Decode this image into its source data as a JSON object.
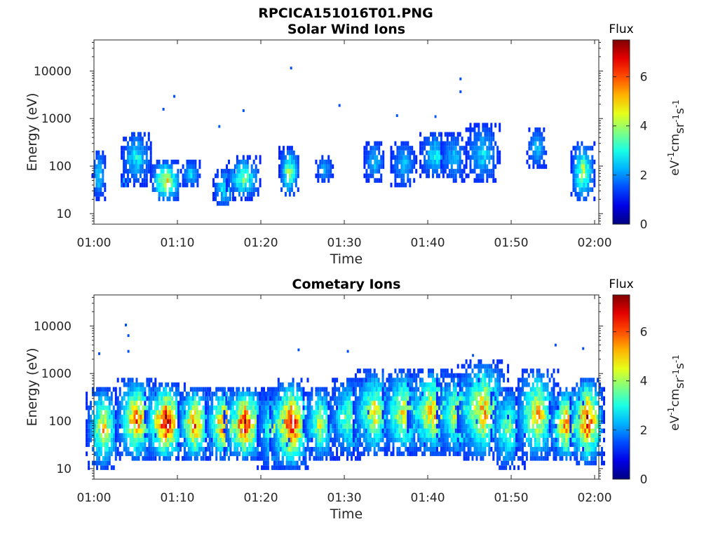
{
  "figure_title": "RPCICA151016T01.PNG",
  "chart_data": [
    {
      "type": "heatmap",
      "title": "Solar Wind Ions",
      "xlabel": "Time",
      "ylabel": "Energy (eV)",
      "x_ticks": [
        "01:00",
        "01:10",
        "01:20",
        "01:30",
        "01:40",
        "01:50",
        "02:00"
      ],
      "x_range_minutes": [
        0,
        60.5
      ],
      "y_scale": "log",
      "y_ticks": [
        "10",
        "100",
        "1000",
        "10000"
      ],
      "y_range": [
        6,
        45000
      ],
      "colorbar": {
        "title": "Flux",
        "label": "eV-1cm-2sr-1s-1",
        "ticks": [
          "0",
          "2",
          "4",
          "6"
        ],
        "range": [
          0,
          7.5
        ],
        "colormap": "jet"
      },
      "bursts": [
        {
          "t": 0.5,
          "w": 0.8,
          "e": [
            18,
            200
          ],
          "peak": 3.0
        },
        {
          "t": 3.5,
          "w": 0.8,
          "e": [
            30,
            60
          ],
          "peak": 2.8
        },
        {
          "t": 5.0,
          "w": 1.8,
          "e": [
            35,
            500
          ],
          "peak": 3.0
        },
        {
          "t": 8.5,
          "w": 1.8,
          "e": [
            15,
            120
          ],
          "peak": 5.0
        },
        {
          "t": 11.5,
          "w": 1.2,
          "e": [
            30,
            120
          ],
          "peak": 2.8
        },
        {
          "t": 15.5,
          "w": 1.3,
          "e": [
            12,
            80
          ],
          "peak": 3.2
        },
        {
          "t": 17.8,
          "w": 2.0,
          "e": [
            18,
            140
          ],
          "peak": 4.0
        },
        {
          "t": 23.3,
          "w": 1.2,
          "e": [
            20,
            220
          ],
          "peak": 4.2
        },
        {
          "t": 27.5,
          "w": 1.0,
          "e": [
            40,
            150
          ],
          "peak": 2.5
        },
        {
          "t": 33.5,
          "w": 1.2,
          "e": [
            40,
            300
          ],
          "peak": 2.6
        },
        {
          "t": 37.0,
          "w": 1.5,
          "e": [
            30,
            300
          ],
          "peak": 2.6
        },
        {
          "t": 40.8,
          "w": 1.8,
          "e": [
            45,
            500
          ],
          "peak": 3.0
        },
        {
          "t": 43.0,
          "w": 1.5,
          "e": [
            40,
            450
          ],
          "peak": 2.6
        },
        {
          "t": 46.5,
          "w": 2.0,
          "e": [
            40,
            700
          ],
          "peak": 2.8
        },
        {
          "t": 53.0,
          "w": 1.2,
          "e": [
            80,
            600
          ],
          "peak": 2.6
        },
        {
          "t": 58.5,
          "w": 1.4,
          "e": [
            15,
            300
          ],
          "peak": 4.4
        }
      ],
      "isolated_points": [
        {
          "t": 9.5,
          "e": 2800,
          "v": 1.5
        },
        {
          "t": 8.2,
          "e": 1500,
          "v": 1.5
        },
        {
          "t": 17.8,
          "e": 1400,
          "v": 1.5
        },
        {
          "t": 23.5,
          "e": 11000,
          "v": 1.5
        },
        {
          "t": 29.3,
          "e": 1800,
          "v": 1.5
        },
        {
          "t": 43.8,
          "e": 6500,
          "v": 1.5
        },
        {
          "t": 43.8,
          "e": 3500,
          "v": 1.5
        },
        {
          "t": 36.2,
          "e": 1100,
          "v": 1.6
        },
        {
          "t": 40.8,
          "e": 1050,
          "v": 1.6
        },
        {
          "t": 14.9,
          "e": 650,
          "v": 1.6
        }
      ]
    },
    {
      "type": "heatmap",
      "title": "Cometary Ions",
      "xlabel": "Time",
      "ylabel": "Energy (eV)",
      "x_ticks": [
        "01:00",
        "01:10",
        "01:20",
        "01:30",
        "01:40",
        "01:50",
        "02:00"
      ],
      "x_range_minutes": [
        0,
        60.5
      ],
      "y_scale": "log",
      "y_ticks": [
        "10",
        "100",
        "1000",
        "10000"
      ],
      "y_range": [
        6,
        45000
      ],
      "colorbar": {
        "title": "Flux",
        "label": "eV-1cm-2sr-1s-1",
        "ticks": [
          "0",
          "2",
          "4",
          "6"
        ],
        "range": [
          0,
          7.5
        ],
        "colormap": "jet"
      },
      "bursts": [
        {
          "t": 1.0,
          "w": 2.0,
          "e": [
            8,
            500
          ],
          "peak": 5.0
        },
        {
          "t": 5.0,
          "w": 2.5,
          "e": [
            12,
            800
          ],
          "peak": 6.0
        },
        {
          "t": 8.5,
          "w": 2.5,
          "e": [
            12,
            600
          ],
          "peak": 7.2
        },
        {
          "t": 12.0,
          "w": 2.0,
          "e": [
            12,
            500
          ],
          "peak": 6.2
        },
        {
          "t": 15.5,
          "w": 2.2,
          "e": [
            12,
            500
          ],
          "peak": 6.2
        },
        {
          "t": 18.0,
          "w": 2.5,
          "e": [
            12,
            500
          ],
          "peak": 6.8
        },
        {
          "t": 21.5,
          "w": 2.0,
          "e": [
            8,
            500
          ],
          "peak": 4.2
        },
        {
          "t": 23.5,
          "w": 2.5,
          "e": [
            8,
            700
          ],
          "peak": 7.0
        },
        {
          "t": 27.0,
          "w": 2.0,
          "e": [
            12,
            500
          ],
          "peak": 4.5
        },
        {
          "t": 30.5,
          "w": 2.5,
          "e": [
            14,
            800
          ],
          "peak": 4.0
        },
        {
          "t": 33.5,
          "w": 2.5,
          "e": [
            15,
            1200
          ],
          "peak": 5.0
        },
        {
          "t": 37.0,
          "w": 2.5,
          "e": [
            15,
            1200
          ],
          "peak": 5.0
        },
        {
          "t": 40.5,
          "w": 3.0,
          "e": [
            15,
            1200
          ],
          "peak": 5.5
        },
        {
          "t": 43.5,
          "w": 2.5,
          "e": [
            15,
            1000
          ],
          "peak": 5.0
        },
        {
          "t": 46.5,
          "w": 3.0,
          "e": [
            12,
            1800
          ],
          "peak": 5.5
        },
        {
          "t": 49.5,
          "w": 2.0,
          "e": [
            8,
            500
          ],
          "peak": 4.0
        },
        {
          "t": 53.0,
          "w": 2.5,
          "e": [
            12,
            1200
          ],
          "peak": 5.5
        },
        {
          "t": 56.5,
          "w": 2.0,
          "e": [
            12,
            500
          ],
          "peak": 6.0
        },
        {
          "t": 59.0,
          "w": 2.0,
          "e": [
            10,
            800
          ],
          "peak": 7.0
        }
      ],
      "isolated_points": [
        {
          "t": 3.7,
          "e": 10000,
          "v": 1.5
        },
        {
          "t": 4.0,
          "e": 6000,
          "v": 1.5
        },
        {
          "t": 4.0,
          "e": 2800,
          "v": 1.5
        },
        {
          "t": 0.5,
          "e": 2500,
          "v": 1.5
        },
        {
          "t": 24.4,
          "e": 3000,
          "v": 1.5
        },
        {
          "t": 30.3,
          "e": 2800,
          "v": 1.5
        },
        {
          "t": 45.3,
          "e": 2300,
          "v": 1.5
        },
        {
          "t": 55.2,
          "e": 3800,
          "v": 1.5
        },
        {
          "t": 58.5,
          "e": 3200,
          "v": 1.5
        }
      ]
    }
  ]
}
